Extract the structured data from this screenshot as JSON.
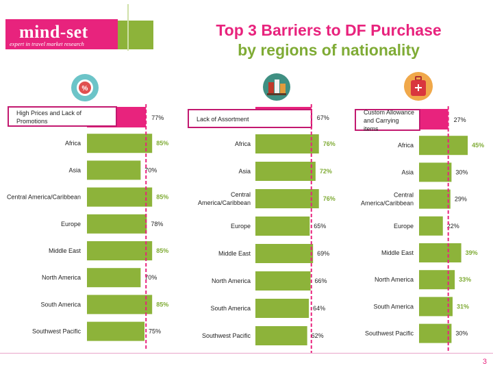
{
  "header": {
    "logo_text": "mind-set",
    "logo_tagline": "expert in travel market research",
    "title_line1": "Top 3 Barriers to DF Purchase",
    "title_line2": "by regions of nationality"
  },
  "icons": [
    "percent-tag-icon",
    "shopping-assortment-icon",
    "luggage-icon"
  ],
  "colors": {
    "pink": "#e8237d",
    "green": "#7fab35",
    "bar_green": "#8db33a"
  },
  "page_number": "3",
  "chart_data": [
    {
      "type": "bar",
      "title": "High Prices and Lack of Promotions",
      "total_label": "77%",
      "total_value": 77,
      "categories": [
        "Africa",
        "Asia",
        "Central America/Caribbean",
        "Europe",
        "Middle East",
        "North America",
        "South America",
        "Southwest Pacific"
      ],
      "values": [
        85,
        70,
        85,
        78,
        85,
        70,
        85,
        75
      ],
      "value_labels": [
        "85%",
        "70%",
        "85%",
        "78%",
        "85%",
        "70%",
        "85%",
        "75%"
      ],
      "highlighted": [
        true,
        false,
        true,
        false,
        true,
        false,
        true,
        false
      ]
    },
    {
      "type": "bar",
      "title": "Lack of Assortment",
      "total_label": "67%",
      "total_value": 67,
      "categories": [
        "Africa",
        "Asia",
        "Central America/Caribbean",
        "Europe",
        "Middle East",
        "North America",
        "South America",
        "Southwest Pacific"
      ],
      "values": [
        76,
        72,
        76,
        65,
        69,
        66,
        64,
        62
      ],
      "value_labels": [
        "76%",
        "72%",
        "76%",
        "65%",
        "69%",
        "66%",
        "64%",
        "62%"
      ],
      "highlighted": [
        true,
        true,
        true,
        false,
        false,
        false,
        false,
        false
      ]
    },
    {
      "type": "bar",
      "title": "Custom Allowance and Carrying items",
      "total_label": "27%",
      "total_value": 27,
      "categories": [
        "Africa",
        "Asia",
        "Central America/Caribbean",
        "Europe",
        "Middle East",
        "North America",
        "South America",
        "Southwest Pacific"
      ],
      "values": [
        45,
        30,
        29,
        22,
        39,
        33,
        31,
        30
      ],
      "value_labels": [
        "45%",
        "30%",
        "29%",
        "22%",
        "39%",
        "33%",
        "31%",
        "30%"
      ],
      "highlighted": [
        true,
        false,
        false,
        false,
        true,
        true,
        true,
        false
      ]
    }
  ]
}
